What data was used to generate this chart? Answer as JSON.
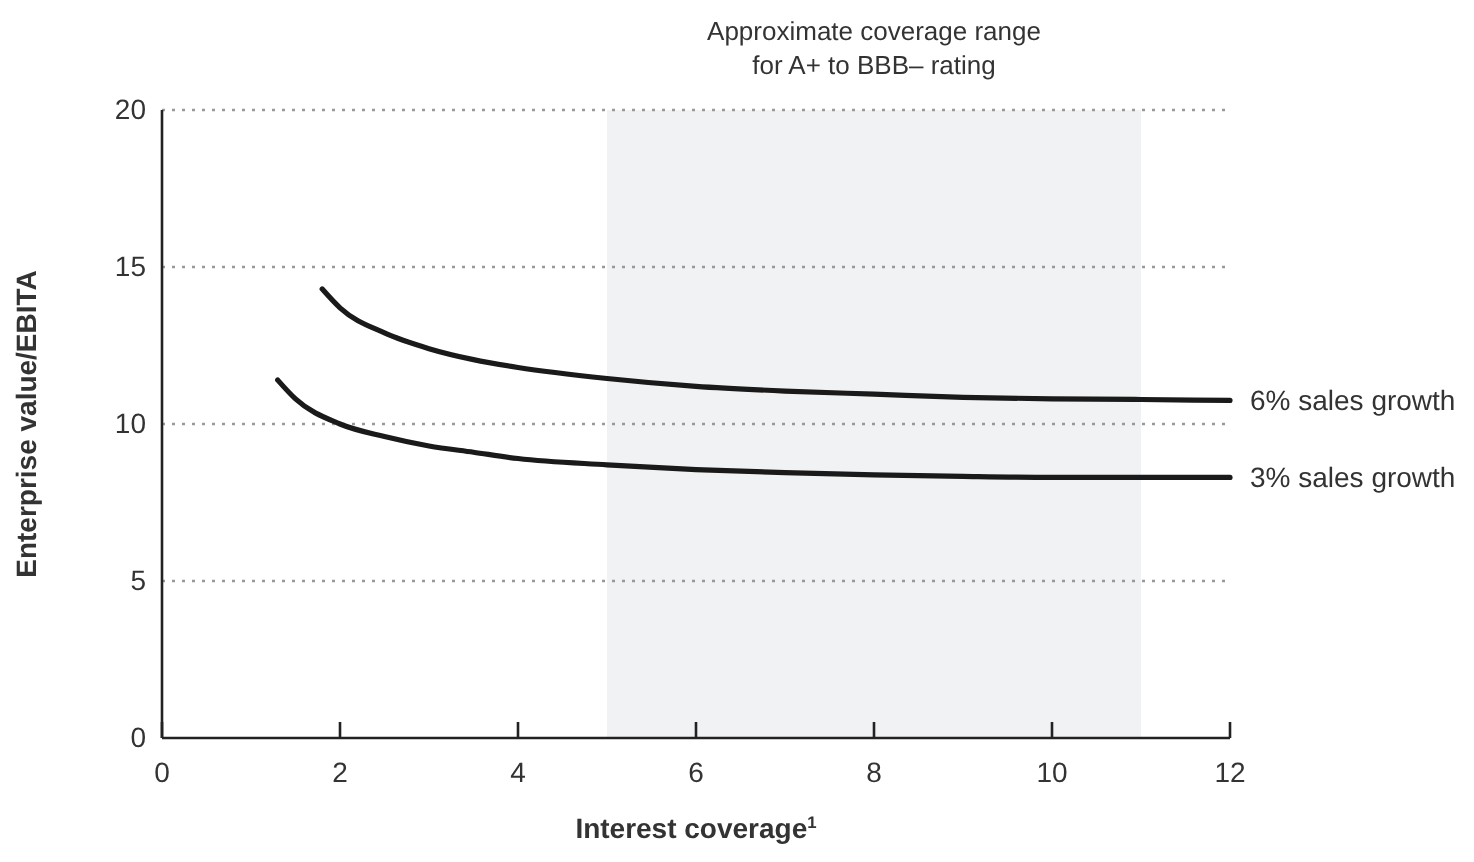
{
  "chart_data": {
    "type": "line",
    "xlabel": "Interest coverage$^{1}$",
    "ylabel": "Enterprise value/EBITA",
    "xlim": [
      0,
      12
    ],
    "xticks": [
      0,
      2,
      4,
      6,
      8,
      10,
      12
    ],
    "ylim": [
      0,
      20
    ],
    "yticks": [
      0,
      5,
      10,
      15,
      20
    ],
    "grid": "y",
    "bands": [
      {
        "axis": "x",
        "from": 5,
        "to": 11,
        "label": "Approximate coverage range\nfor A+ to BBB– rating",
        "color": "#f1f2f3"
      }
    ],
    "series": [
      {
        "name": "6% sales growth",
        "color": "#1a1a1a",
        "x": [
          1.8,
          2,
          2.5,
          3,
          3.5,
          4,
          5,
          6,
          7,
          8,
          9,
          10,
          11,
          12
        ],
        "values": [
          14.3,
          13.7,
          12.9,
          12.4,
          12.05,
          11.8,
          11.45,
          11.2,
          11.05,
          10.95,
          10.85,
          10.8,
          10.78,
          10.75
        ]
      },
      {
        "name": "3% sales growth",
        "color": "#1a1a1a",
        "x": [
          1.3,
          1.5,
          2,
          2.5,
          3,
          3.5,
          4,
          5,
          6,
          7,
          8,
          9,
          10,
          11,
          12
        ],
        "values": [
          11.4,
          10.8,
          10.0,
          9.6,
          9.3,
          9.1,
          8.9,
          8.7,
          8.55,
          8.45,
          8.38,
          8.33,
          8.3,
          8.3,
          8.3
        ]
      }
    ]
  }
}
